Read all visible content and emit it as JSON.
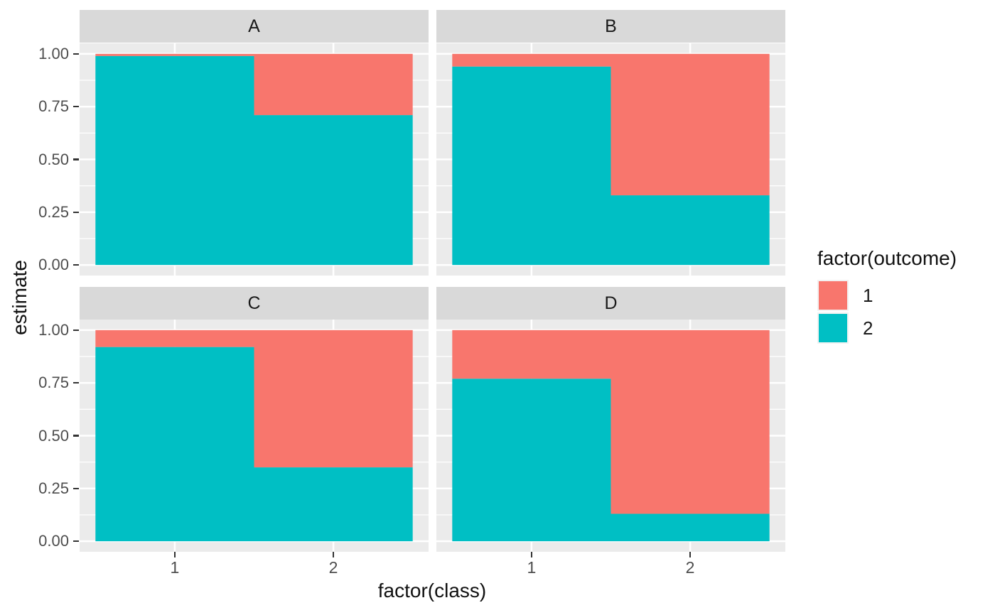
{
  "chart_data": {
    "type": "bar",
    "variant": "stacked-fill-faceted",
    "title": "",
    "xlabel": "factor(class)",
    "ylabel": "estimate",
    "categories": [
      "1",
      "2"
    ],
    "x_ticks": [
      "1",
      "2"
    ],
    "y_ticks": [
      "0.00",
      "0.25",
      "0.50",
      "0.75",
      "1.00"
    ],
    "ylim": [
      0,
      1
    ],
    "grid": true,
    "facets": [
      {
        "label": "A",
        "series": [
          {
            "name": "1",
            "values": [
              0.01,
              0.29
            ]
          },
          {
            "name": "2",
            "values": [
              0.99,
              0.71
            ]
          }
        ]
      },
      {
        "label": "B",
        "series": [
          {
            "name": "1",
            "values": [
              0.06,
              0.67
            ]
          },
          {
            "name": "2",
            "values": [
              0.94,
              0.33
            ]
          }
        ]
      },
      {
        "label": "C",
        "series": [
          {
            "name": "1",
            "values": [
              0.08,
              0.65
            ]
          },
          {
            "name": "2",
            "values": [
              0.92,
              0.35
            ]
          }
        ]
      },
      {
        "label": "D",
        "series": [
          {
            "name": "1",
            "values": [
              0.23,
              0.87
            ]
          },
          {
            "name": "2",
            "values": [
              0.77,
              0.13
            ]
          }
        ]
      }
    ],
    "legend": {
      "title": "factor(outcome)",
      "position": "right",
      "entries": [
        {
          "label": "1",
          "color": "#F8766D"
        },
        {
          "label": "2",
          "color": "#00BFC4"
        }
      ]
    }
  },
  "theme": {
    "background": "#FFFFFF",
    "panel_background": "#EBEBEB",
    "strip_background": "#D9D9D9",
    "grid_color": "#FFFFFF",
    "axis_text_color": "#4D4D4D",
    "strip_text_color": "#1A1A1A",
    "title_text_color": "#111111",
    "tick_mark_color": "#333333",
    "fill_outcome_1": "#F8766D",
    "fill_outcome_2": "#00BFC4"
  }
}
